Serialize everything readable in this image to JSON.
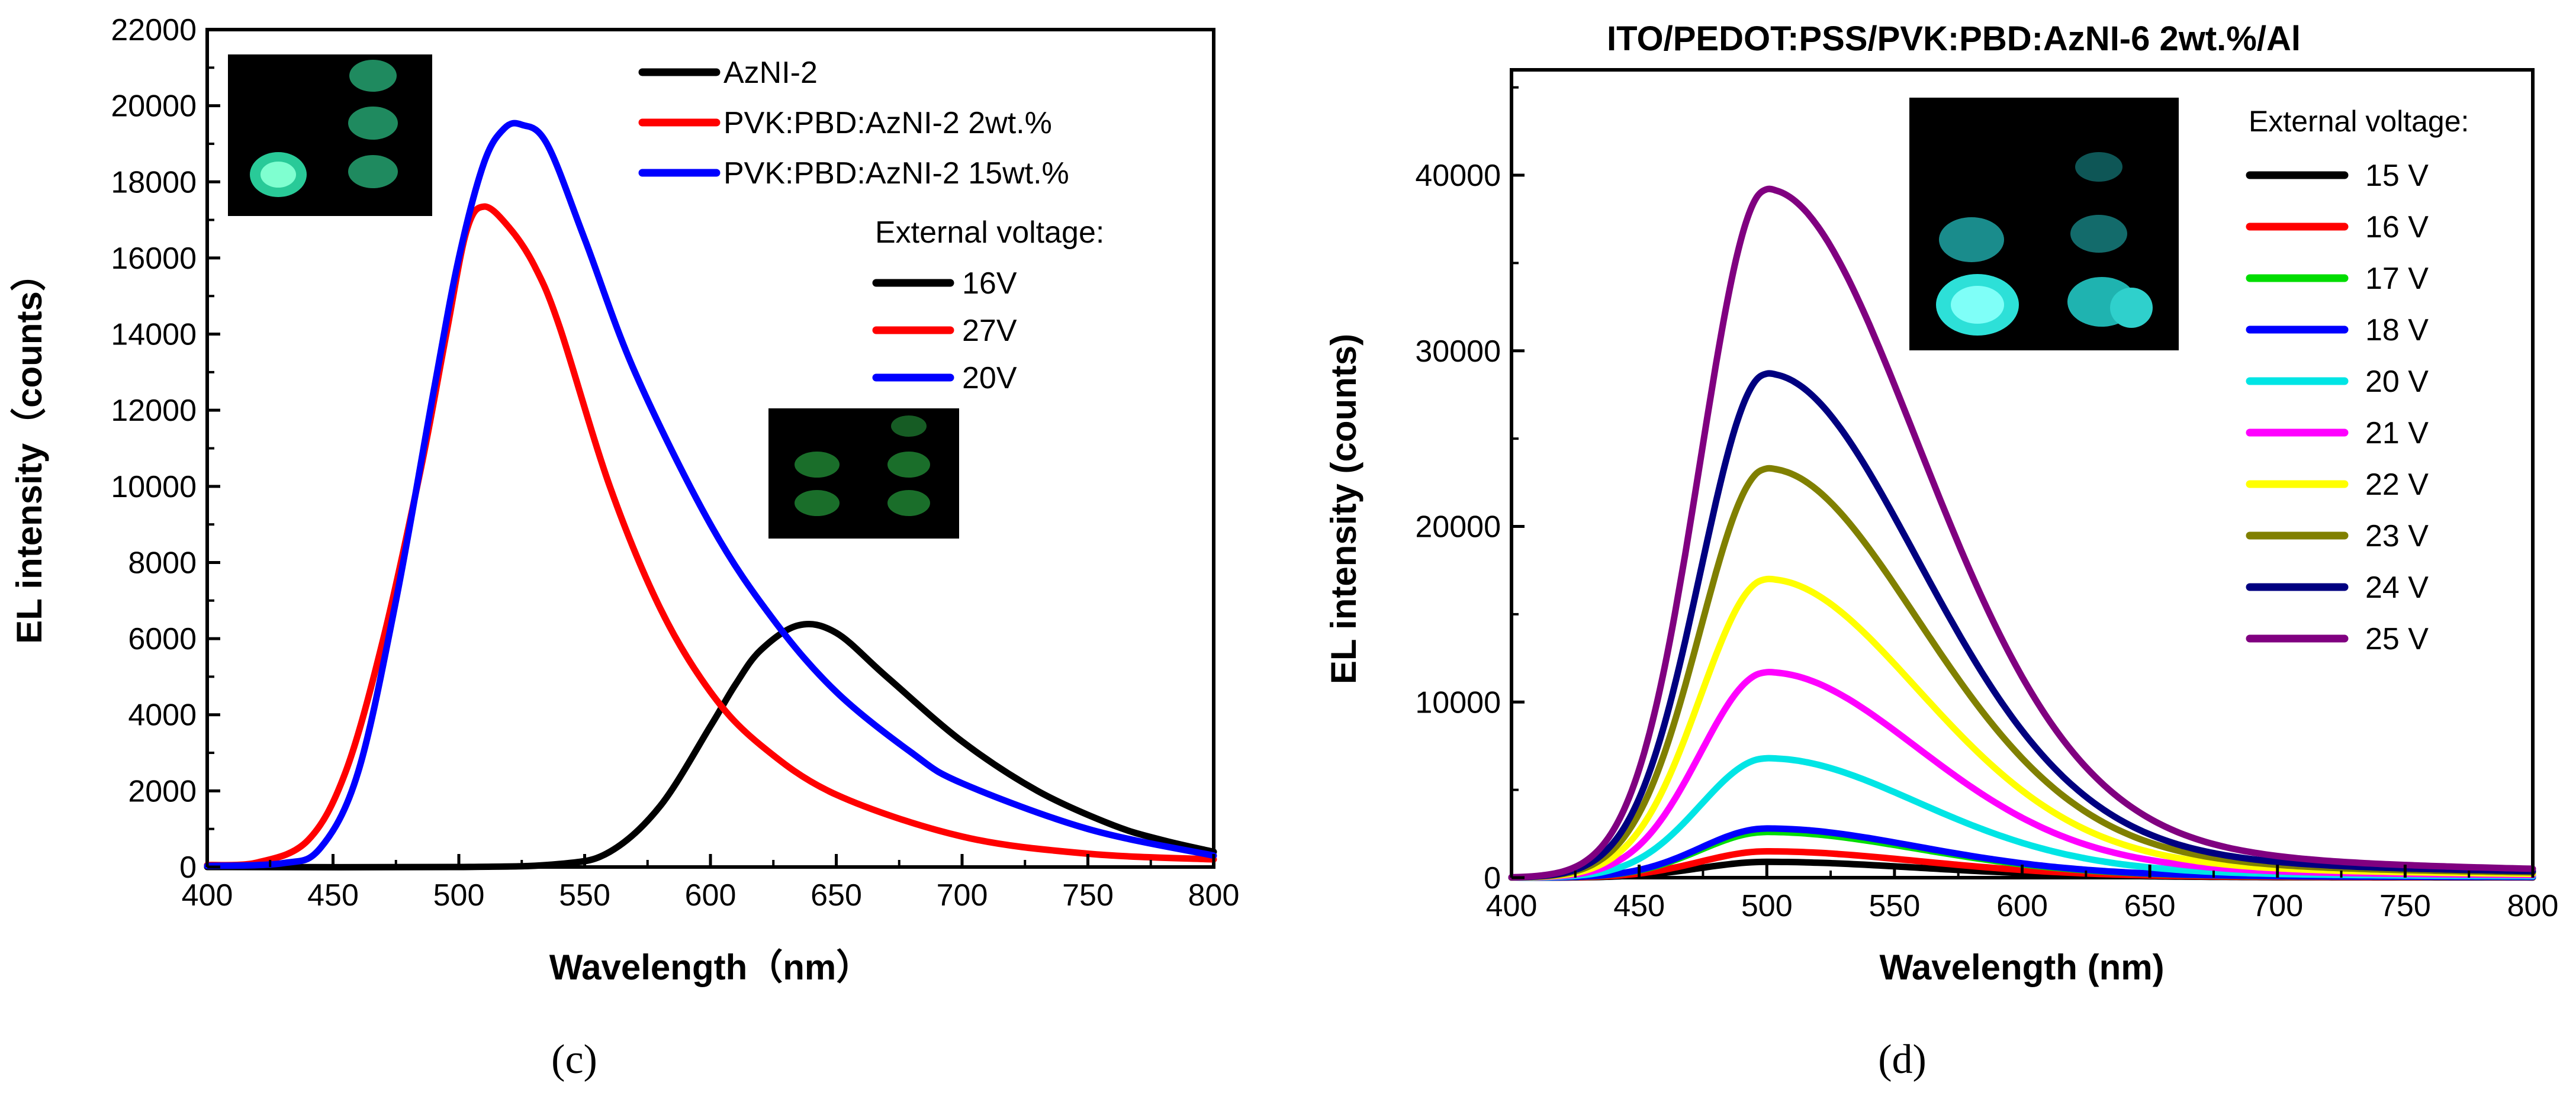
{
  "chart_data": [
    {
      "type": "line",
      "panel_label": "(c)",
      "title": "",
      "xlabel": "Wavelength（nm）",
      "ylabel": "EL intensity（counts）",
      "xlim": [
        400,
        800
      ],
      "ylim": [
        0,
        22000
      ],
      "xticks": [
        "400",
        "450",
        "500",
        "550",
        "600",
        "650",
        "700",
        "750",
        "800"
      ],
      "yticks": [
        "0",
        "2000",
        "4000",
        "6000",
        "8000",
        "10000",
        "12000",
        "14000",
        "16000",
        "18000",
        "20000",
        "22000"
      ],
      "legend_position": "top-right",
      "voltage_title": "External voltage:",
      "series": [
        {
          "name": "AzNI-2",
          "voltage": "16V",
          "color": "#000000",
          "points": [
            [
              400,
              0
            ],
            [
              500,
              0
            ],
            [
              540,
              80
            ],
            [
              560,
              400
            ],
            [
              580,
              1600
            ],
            [
              600,
              3700
            ],
            [
              610,
              4800
            ],
            [
              620,
              5700
            ],
            [
              635,
              6350
            ],
            [
              650,
              6150
            ],
            [
              670,
              5000
            ],
            [
              700,
              3300
            ],
            [
              730,
              2000
            ],
            [
              760,
              1100
            ],
            [
              780,
              700
            ],
            [
              800,
              400
            ]
          ]
        },
        {
          "name": "PVK:PBD:AzNI-2 2wt.%",
          "voltage": "27V",
          "color": "#ff0000",
          "points": [
            [
              400,
              50
            ],
            [
              420,
              120
            ],
            [
              440,
              700
            ],
            [
              455,
              2500
            ],
            [
              470,
              6000
            ],
            [
              485,
              10500
            ],
            [
              495,
              14000
            ],
            [
              503,
              16700
            ],
            [
              510,
              17350
            ],
            [
              520,
              16800
            ],
            [
              530,
              15800
            ],
            [
              540,
              14200
            ],
            [
              560,
              10000
            ],
            [
              580,
              6800
            ],
            [
              600,
              4600
            ],
            [
              620,
              3200
            ],
            [
              650,
              1900
            ],
            [
              700,
              800
            ],
            [
              750,
              350
            ],
            [
              800,
              200
            ]
          ]
        },
        {
          "name": "PVK:PBD:AzNI-2 15wt.%",
          "voltage": "20V",
          "color": "#0000ff",
          "points": [
            [
              400,
              30
            ],
            [
              430,
              100
            ],
            [
              445,
              500
            ],
            [
              460,
              2500
            ],
            [
              475,
              7000
            ],
            [
              490,
              12500
            ],
            [
              500,
              16000
            ],
            [
              510,
              18500
            ],
            [
              518,
              19400
            ],
            [
              525,
              19500
            ],
            [
              535,
              19000
            ],
            [
              550,
              16500
            ],
            [
              570,
              13000
            ],
            [
              600,
              9000
            ],
            [
              625,
              6500
            ],
            [
              650,
              4600
            ],
            [
              680,
              3000
            ],
            [
              700,
              2200
            ],
            [
              750,
              1000
            ],
            [
              800,
              300
            ]
          ]
        }
      ]
    },
    {
      "type": "line",
      "panel_label": "(d)",
      "title": "ITO/PEDOT:PSS/PVK:PBD:AzNI-6 2wt.%/Al",
      "xlabel": "Wavelength (nm)",
      "ylabel": "EL intensity (counts)",
      "xlim": [
        400,
        800
      ],
      "ylim": [
        0,
        46000
      ],
      "xticks": [
        "400",
        "450",
        "500",
        "550",
        "600",
        "650",
        "700",
        "750",
        "800"
      ],
      "yticks": [
        "0",
        "10000",
        "20000",
        "30000",
        "40000"
      ],
      "legend_position": "top-right",
      "legend_title": "External voltage:",
      "peak_wavelength": 500,
      "series": [
        {
          "name": "15 V",
          "color": "#000000",
          "peak": 900
        },
        {
          "name": "16 V",
          "color": "#ff0000",
          "peak": 1500
        },
        {
          "name": "17 V",
          "color": "#00dd00",
          "peak": 2600
        },
        {
          "name": "18 V",
          "color": "#0000ff",
          "peak": 2800
        },
        {
          "name": "20 V",
          "color": "#00e5e5",
          "peak": 6800
        },
        {
          "name": "21 V",
          "color": "#ff00ff",
          "peak": 11700
        },
        {
          "name": "22 V",
          "color": "#ffff00",
          "peak": 17000
        },
        {
          "name": "23 V",
          "color": "#808000",
          "peak": 23300
        },
        {
          "name": "24 V",
          "color": "#000080",
          "peak": 28700
        },
        {
          "name": "25 V",
          "color": "#800080",
          "peak": 39200
        }
      ]
    }
  ]
}
